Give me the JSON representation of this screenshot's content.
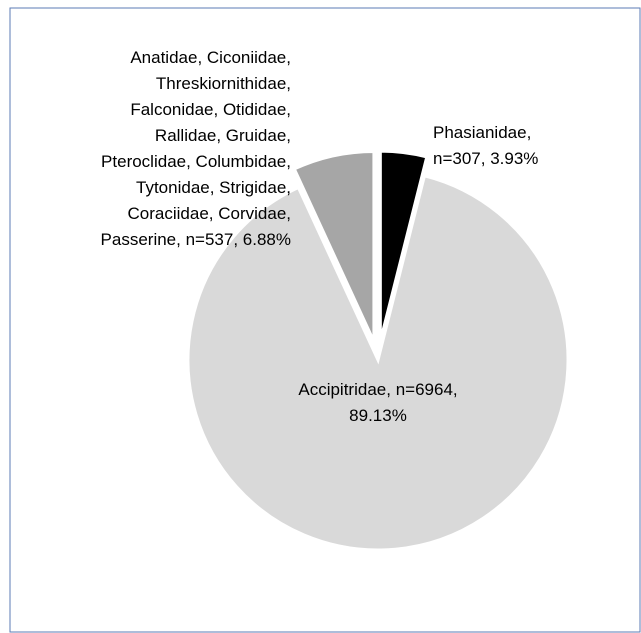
{
  "chart_data": {
    "type": "pie",
    "categories": [
      "Phasianidae,",
      "Accipitridae,",
      "Anatidae, Ciconiidae, Threskiornithidae, Falconidae, Otididae, Rallidae, Gruidae, Pteroclidae, Columbidae, Tytonidae, Strigidae, Coraciidae, Corvidae, Passerine,"
    ],
    "values": [
      3.93,
      89.13,
      6.88
    ],
    "value_labels": [
      "n=307, 3.93%",
      "n=6964, 89.13%",
      "n=537, 6.88%"
    ],
    "colors": [
      "#000000",
      "#d9d9d9",
      "#a6a6a6"
    ],
    "explode": [
      0.1,
      0,
      0.1
    ]
  }
}
